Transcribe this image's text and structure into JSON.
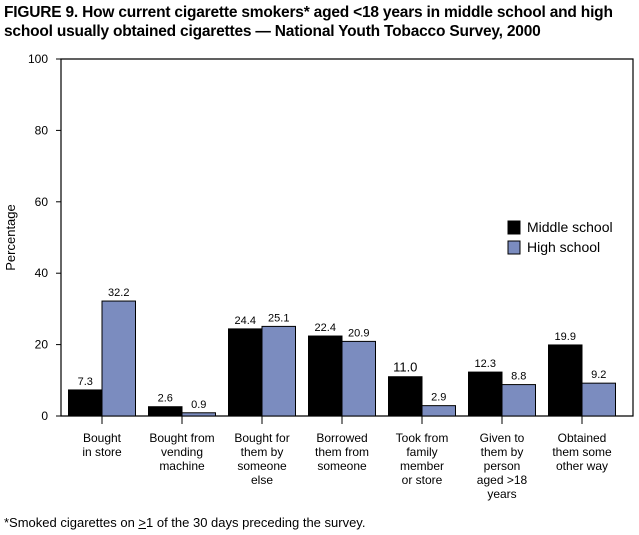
{
  "chart_data": {
    "type": "bar",
    "title": "FIGURE 9. How current cigarette smokers* aged <18 years in middle school and high school usually obtained cigarettes — National Youth Tobacco Survey, 2000",
    "xlabel": "",
    "ylabel": "Percentage",
    "ylim": [
      0,
      100
    ],
    "yticks": [
      0,
      20,
      40,
      60,
      80,
      100
    ],
    "grid": false,
    "legend_position": "right",
    "categories": [
      [
        "Bought",
        "in store"
      ],
      [
        "Bought from",
        "vending",
        "machine"
      ],
      [
        "Bought for",
        "them by",
        "someone",
        "else"
      ],
      [
        "Borrowed",
        "them from",
        "someone"
      ],
      [
        "Took from",
        "family",
        "member",
        "or store"
      ],
      [
        "Given to",
        "them by",
        "person",
        "aged >18",
        "years"
      ],
      [
        "Obtained",
        "them some",
        "other way"
      ]
    ],
    "series": [
      {
        "name": "Middle school",
        "color": "#000000",
        "values": [
          7.3,
          2.6,
          24.4,
          22.4,
          11.0,
          12.3,
          19.9
        ],
        "labels": [
          "7.3",
          "2.6",
          "24.4",
          "22.4",
          "11.0",
          "12.3",
          "19.9"
        ]
      },
      {
        "name": "High school",
        "color": "#7b8cbf",
        "values": [
          32.2,
          0.9,
          25.1,
          20.9,
          2.9,
          8.8,
          9.2
        ],
        "labels": [
          "32.2",
          "0.9",
          "25.1",
          "20.9",
          "2.9",
          "8.8",
          "9.2"
        ]
      }
    ],
    "footnote": {
      "before": "*Smoked cigarettes on ",
      "underlined": ">",
      "after": "1 of the 30 days preceding the survey."
    }
  }
}
